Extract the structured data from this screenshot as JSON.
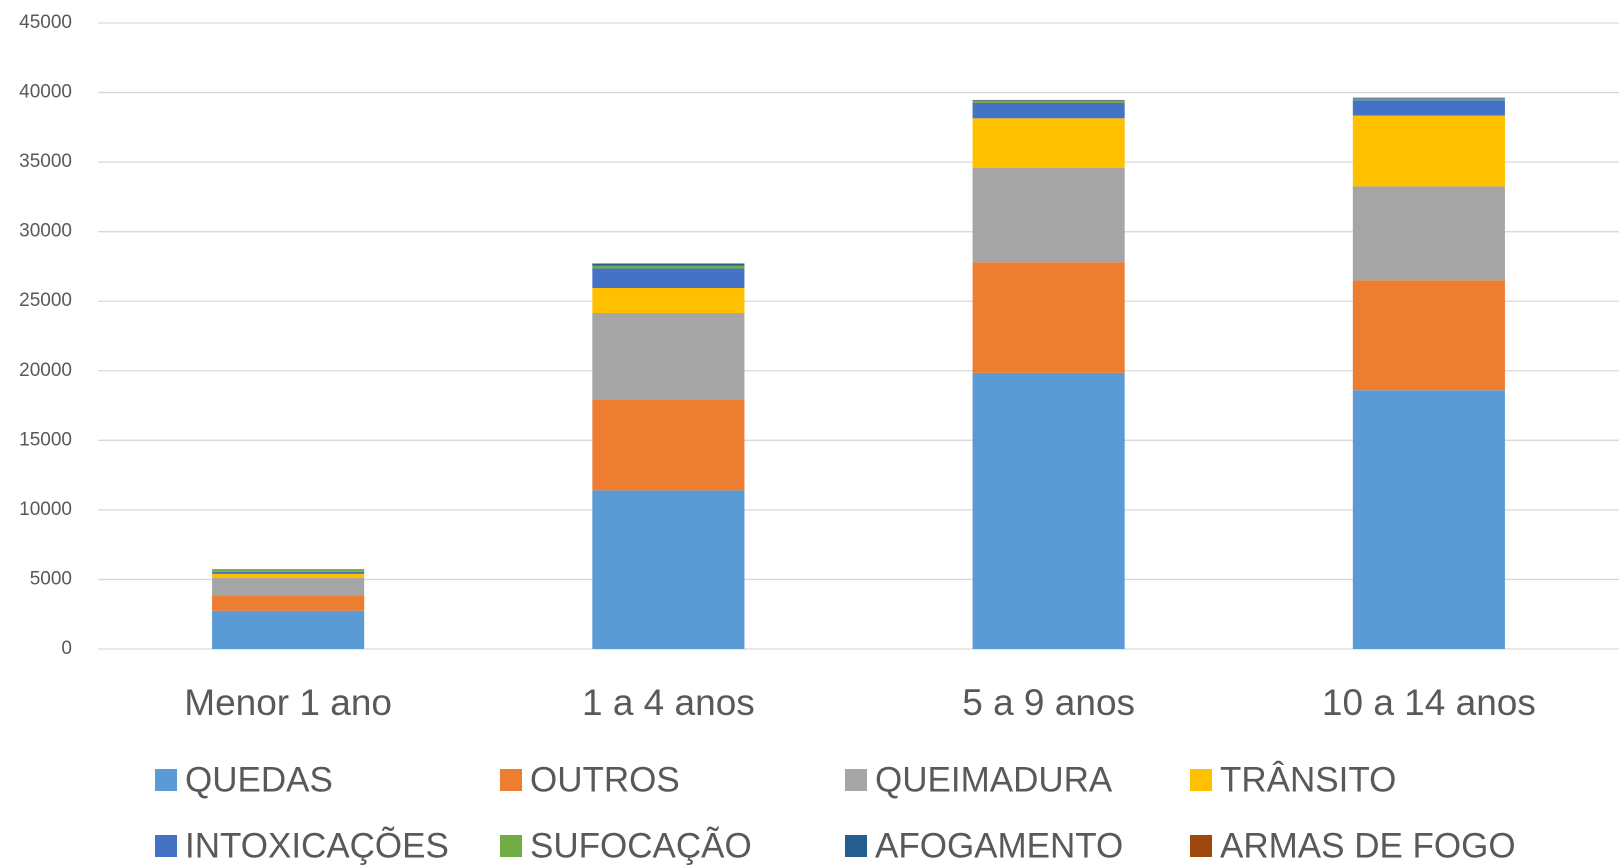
{
  "chart_data": {
    "type": "stacked_bar",
    "categories": [
      "Menor 1 ano",
      "1 a 4 anos",
      "5 a 9 anos",
      "10 a 14 anos"
    ],
    "series": [
      {
        "name": "QUEDAS",
        "color": "#5b9bd5",
        "values": [
          2750,
          11400,
          19850,
          18600
        ]
      },
      {
        "name": "OUTROS",
        "color": "#ed7d31",
        "values": [
          1100,
          6550,
          7950,
          7900
        ]
      },
      {
        "name": "QUEIMADURA",
        "color": "#a5a5a5",
        "values": [
          1250,
          6200,
          6800,
          6750
        ]
      },
      {
        "name": "TRÂNSITO",
        "color": "#ffc000",
        "values": [
          300,
          1800,
          3550,
          5100
        ]
      },
      {
        "name": "INTOXICAÇÕES",
        "color": "#4472c4",
        "values": [
          150,
          1400,
          1100,
          1100
        ]
      },
      {
        "name": "SUFOCAÇÃO",
        "color": "#70ad47",
        "values": [
          150,
          200,
          150,
          100
        ]
      },
      {
        "name": "AFOGAMENTO",
        "color": "#255e91",
        "values": [
          30,
          150,
          50,
          50
        ]
      },
      {
        "name": "ARMAS DE FOGO",
        "color": "#9e480e",
        "values": [
          10,
          20,
          20,
          30
        ]
      }
    ],
    "ylim": [
      0,
      45000
    ],
    "yticks": [
      0,
      5000,
      10000,
      15000,
      20000,
      25000,
      30000,
      35000,
      40000,
      45000
    ],
    "grid": true
  }
}
